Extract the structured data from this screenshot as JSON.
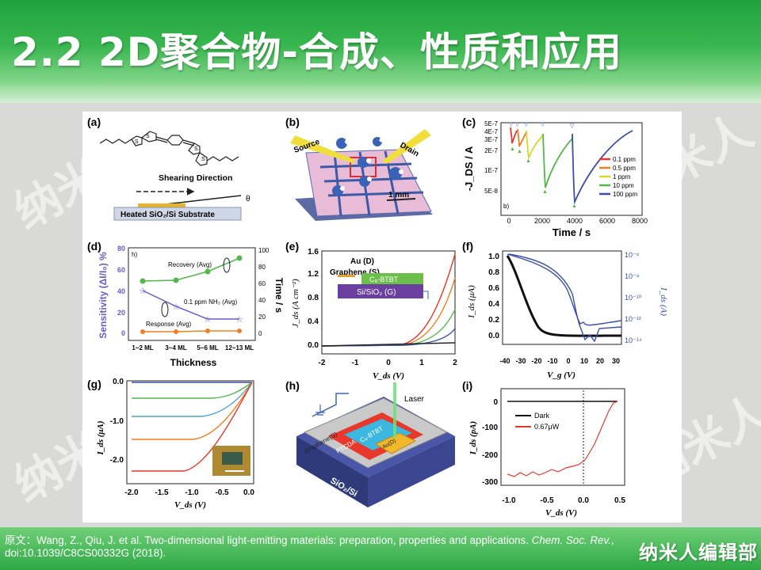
{
  "slide": {
    "title": "2.2 2D聚合物-合成、性质和应用",
    "watermark": "纳米人",
    "brand": "纳米人编辑部",
    "citation": {
      "prefix": "原文：",
      "authors": "Wang, Z., Qiu, J. et al.",
      "article": "Two-dimensional light-emitting materials: preparation, properties and applications.",
      "journal": "Chem. Soc. Rev.",
      "doi": ", doi:10.1039/C8CS00332G",
      "year": "(2018)."
    }
  },
  "panels": {
    "a": {
      "label": "(a)",
      "shearing": "Shearing Direction",
      "theta": "θ",
      "substrate": "Heated SiO₂/Si Substrate"
    },
    "b": {
      "label": "(b)",
      "source": "Source",
      "drain": "Drain",
      "scale": "1 mm"
    },
    "c": {
      "label": "(c)",
      "sublabel": "b)",
      "ylabel": "-J_DS / A",
      "xlabel": "Time / s",
      "yticks": [
        "5E-7",
        "4E-7",
        "3E-7",
        "2E-7",
        "1E-7",
        "5E-8"
      ],
      "xticks": [
        "0",
        "2000",
        "4000",
        "6000",
        "8000"
      ],
      "legend": [
        "0.1 ppm",
        "0.5 ppm",
        "1 ppm",
        "10 ppm",
        "100 ppm"
      ]
    },
    "d": {
      "label": "(d)",
      "sublabel": "h)",
      "ylabel_left": "Sensitivity (ΔI/I₀) %",
      "ylabel_right": "Time / s",
      "xlabel": "Thickness",
      "yticks_left": [
        "0",
        "20",
        "40",
        "60",
        "80"
      ],
      "yticks_right": [
        "0",
        "20",
        "40",
        "60",
        "80",
        "100"
      ],
      "categories": [
        "1~2 ML",
        "3~4 ML",
        "5~6 ML",
        "12~13 ML"
      ],
      "annotations": [
        "Recovery (Avg)",
        "0.1 ppm NH₃ (Avg)",
        "Response (Avg)"
      ]
    },
    "e": {
      "label": "(e)",
      "ylabel": "J_ds (A cm⁻²)",
      "xlabel": "V_ds (V)",
      "yticks": [
        "0.0",
        "0.4",
        "0.8",
        "1.2",
        "1.6"
      ],
      "xticks": [
        "-2",
        "-1",
        "0",
        "1",
        "2"
      ],
      "device": {
        "top": "Au (D)",
        "left": "Graphene (S)",
        "layer": "C₈-BTBT",
        "bottom": "Si/SiO₂ (G)"
      }
    },
    "f": {
      "label": "(f)",
      "ylabel_left": "I_ds (μA)",
      "ylabel_right": "I_ds (A)",
      "xlabel": "V_g (V)",
      "yticks_left": [
        "0.0",
        "0.2",
        "0.4",
        "0.6",
        "0.8",
        "1.0"
      ],
      "yticks_right": [
        "10⁻¹⁴",
        "10⁻¹²",
        "10⁻¹⁰",
        "10⁻⁸",
        "10⁻⁶"
      ],
      "xticks": [
        "-40",
        "-30",
        "-20",
        "-10",
        "0",
        "10",
        "20",
        "30"
      ]
    },
    "g": {
      "label": "(g)",
      "ylabel": "I_ds (μA)",
      "xlabel": "V_ds (V)",
      "yticks": [
        "0.0",
        "-1.0",
        "-2.0"
      ],
      "xticks": [
        "-2.0",
        "-1.5",
        "-1.0",
        "-0.5",
        "0.0"
      ]
    },
    "h": {
      "label": "(h)",
      "laser": "Laser",
      "graphene": "Graphene(S)",
      "ptcda": "PTCDA",
      "btbt": "C₈-BTBT",
      "au": "Au(D)",
      "substrate": "SiO₂/Si"
    },
    "i": {
      "label": "(i)",
      "ylabel": "I_ds (pA)",
      "xlabel": "V_ds (V)",
      "yticks": [
        "0",
        "-100",
        "-200",
        "-300"
      ],
      "xticks": [
        "-1.0",
        "-0.5",
        "0.0",
        "0.5"
      ],
      "legend": [
        "Dark",
        "0.67μW"
      ]
    }
  },
  "colors": {
    "header_green": "#2aa846",
    "footer_green": "#3cb54f",
    "red": "#e8372b",
    "orange": "#f07f1f",
    "yellow": "#d8d627",
    "green": "#52b848",
    "blue": "#3b4fa8",
    "purple": "#6a5cc7"
  }
}
